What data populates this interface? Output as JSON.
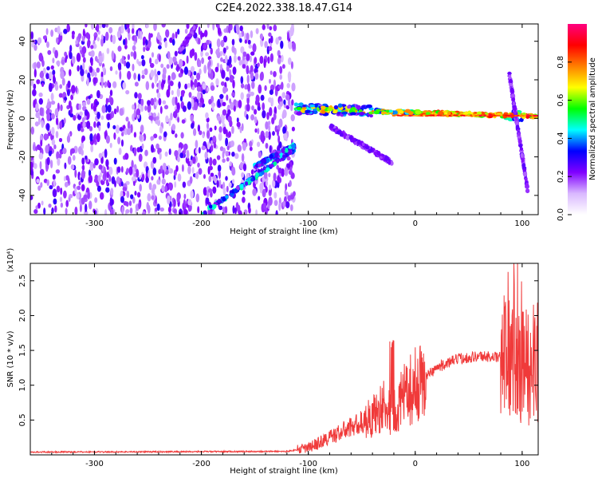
{
  "title": "C2E4.2022.338.18.47.G14",
  "chart_data": [
    {
      "type": "heatmap",
      "xlabel": "Height of straight line (km)",
      "ylabel": "Frequency (Hz)",
      "xlim": [
        -360,
        115
      ],
      "ylim": [
        -50,
        49
      ],
      "x_ticks": [
        -300,
        -200,
        -100,
        0,
        100
      ],
      "y_ticks": [
        -40,
        -20,
        0,
        20,
        40
      ],
      "colorbar": {
        "label": "Normalized spectral amplitude",
        "range": [
          0,
          1
        ],
        "ticks": [
          0.0,
          0.2,
          0.4,
          0.6,
          0.8
        ],
        "colors": [
          "#ffffff",
          "#d9b8ff",
          "#8000ff",
          "#0000ff",
          "#00ffff",
          "#00ff00",
          "#ffff00",
          "#ff8000",
          "#ff0000",
          "#ff0080"
        ]
      },
      "noise_region": [
        -360,
        -113
      ],
      "features": [
        {
          "kind": "drift_line",
          "x": [
            -220,
            -205
          ],
          "y": [
            35,
            48
          ]
        },
        {
          "kind": "drift_line",
          "x": [
            -200,
            -113
          ],
          "y": [
            -50,
            -16
          ]
        },
        {
          "kind": "drift_line",
          "x": [
            -150,
            -113
          ],
          "y": [
            -25,
            -14
          ]
        },
        {
          "kind": "carrier",
          "x": [
            -113,
            115
          ],
          "y": [
            5,
            1
          ]
        },
        {
          "kind": "drift_line",
          "x": [
            -80,
            -22
          ],
          "y": [
            -4,
            -23
          ]
        },
        {
          "kind": "drift_line",
          "x": [
            88,
            105
          ],
          "y": [
            23,
            -37
          ]
        }
      ]
    },
    {
      "type": "line",
      "xlabel": "Height of straight line (km)",
      "ylabel": "SNR (10 * v/v)",
      "y_scale_label": "(x10⁴)",
      "xlim": [
        -360,
        115
      ],
      "ylim": [
        0,
        2.75
      ],
      "x_ticks": [
        -300,
        -200,
        -100,
        0,
        100
      ],
      "y_ticks": [
        0.5,
        1.0,
        1.5,
        2.0,
        2.5
      ],
      "series_color": "#f03a3a",
      "trend": {
        "x": [
          -360,
          -120,
          -100,
          -80,
          -60,
          -40,
          -30,
          -20,
          -10,
          0,
          20,
          40,
          60,
          80,
          90,
          100,
          110,
          115
        ],
        "y": [
          0.04,
          0.05,
          0.1,
          0.25,
          0.4,
          0.55,
          0.7,
          0.6,
          0.85,
          1.0,
          1.25,
          1.38,
          1.42,
          1.4,
          1.45,
          1.2,
          1.3,
          1.33
        ]
      }
    }
  ]
}
